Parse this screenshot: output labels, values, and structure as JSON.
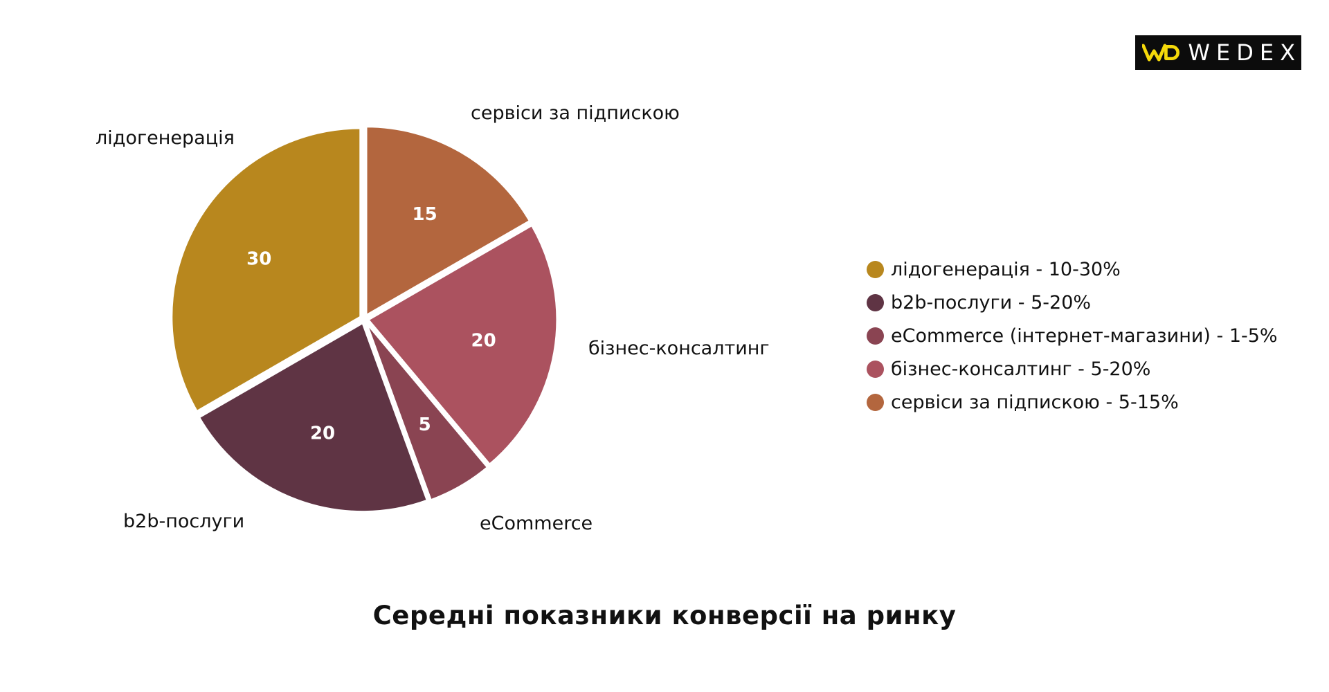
{
  "logo": {
    "text": "WEDEX",
    "mark": "WD"
  },
  "chart_data": {
    "type": "pie",
    "title": "Середні показники конверсії на ринку",
    "categories": [
      "лідогенерація",
      "b2b-послуги",
      "eCommerce",
      "бізнес-консалтинг",
      "сервіси за підпискою"
    ],
    "values": [
      30,
      20,
      5,
      20,
      15
    ],
    "colors": [
      "#b8871e",
      "#5f3444",
      "#8a4452",
      "#ab525f",
      "#b3663e"
    ],
    "legend": [
      "лідогенерація - 10-30%",
      "b2b-послуги - 5-20%",
      "eCommerce (інтернет-магазини) - 1-5%",
      "бізнес-консалтинг - 5-20%",
      "сервіси за підпискою - 5-15%"
    ],
    "legend_position": "right"
  }
}
